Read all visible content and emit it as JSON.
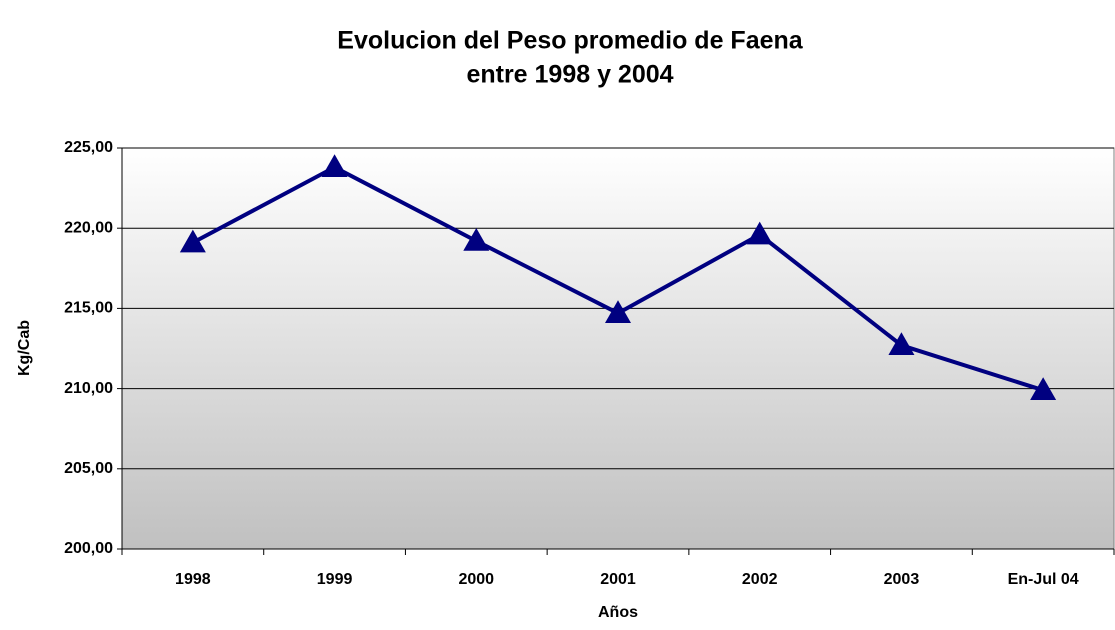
{
  "chart_data": {
    "type": "line",
    "title": [
      "Evolucion del Peso promedio de Faena",
      "entre 1998 y 2004"
    ],
    "xlabel": "Años",
    "ylabel": "Kg/Cab",
    "categories": [
      "1998",
      "1999",
      "2000",
      "2001",
      "2002",
      "2003",
      "En-Jul 04"
    ],
    "series": [
      {
        "name": "Kg/Cab",
        "color": "#000080",
        "values": [
          219.1,
          223.8,
          219.2,
          214.7,
          219.6,
          212.7,
          209.9
        ]
      }
    ],
    "ylim": [
      200,
      225
    ],
    "yticks": [
      {
        "value": 200,
        "label": "200,00"
      },
      {
        "value": 205,
        "label": "205,00"
      },
      {
        "value": 210,
        "label": "210,00"
      },
      {
        "value": 215,
        "label": "215,00"
      },
      {
        "value": 220,
        "label": "220,00"
      },
      {
        "value": 225,
        "label": "225,00"
      }
    ],
    "grid": true,
    "marker": "triangle"
  }
}
